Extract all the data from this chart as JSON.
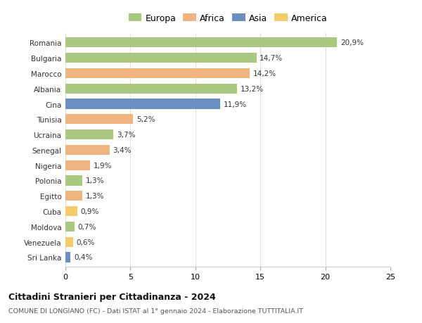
{
  "countries": [
    "Romania",
    "Bulgaria",
    "Marocco",
    "Albania",
    "Cina",
    "Tunisia",
    "Ucraina",
    "Senegal",
    "Nigeria",
    "Polonia",
    "Egitto",
    "Cuba",
    "Moldova",
    "Venezuela",
    "Sri Lanka"
  ],
  "values": [
    20.9,
    14.7,
    14.2,
    13.2,
    11.9,
    5.2,
    3.7,
    3.4,
    1.9,
    1.3,
    1.3,
    0.9,
    0.7,
    0.6,
    0.4
  ],
  "labels": [
    "20,9%",
    "14,7%",
    "14,2%",
    "13,2%",
    "11,9%",
    "5,2%",
    "3,7%",
    "3,4%",
    "1,9%",
    "1,3%",
    "1,3%",
    "0,9%",
    "0,7%",
    "0,6%",
    "0,4%"
  ],
  "colors": [
    "#a8c97f",
    "#a8c97f",
    "#f0b482",
    "#a8c97f",
    "#6b8fc2",
    "#f0b482",
    "#a8c97f",
    "#f0b482",
    "#f0b482",
    "#a8c97f",
    "#f0b482",
    "#f5cc6a",
    "#a8c97f",
    "#f5cc6a",
    "#6b8fc2"
  ],
  "legend_labels": [
    "Europa",
    "Africa",
    "Asia",
    "America"
  ],
  "legend_colors": [
    "#a8c97f",
    "#f0b482",
    "#6b8fc2",
    "#f5cc6a"
  ],
  "title": "Cittadini Stranieri per Cittadinanza - 2024",
  "subtitle": "COMUNE DI LONGIANO (FC) - Dati ISTAT al 1° gennaio 2024 - Elaborazione TUTTITALIA.IT",
  "xlim": [
    0,
    25
  ],
  "xticks": [
    0,
    5,
    10,
    15,
    20,
    25
  ],
  "background_color": "#ffffff",
  "grid_color": "#e0e0e0"
}
